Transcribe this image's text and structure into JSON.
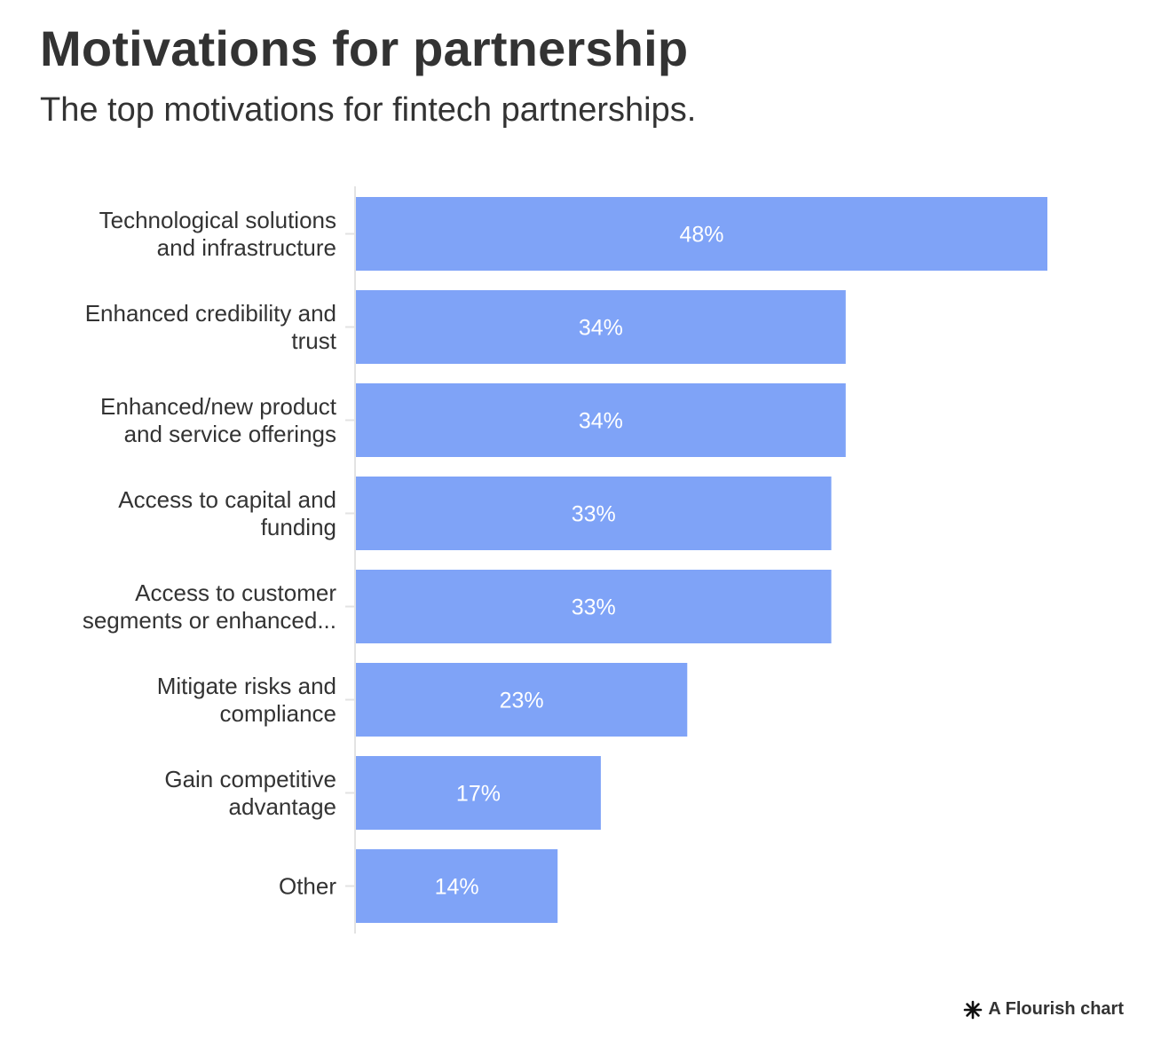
{
  "chart_data": {
    "type": "bar",
    "orientation": "horizontal",
    "title": "Motivations for partnership",
    "subtitle": "The top motivations for fintech partnerships.",
    "categories": [
      [
        "Technological solutions",
        "and infrastructure"
      ],
      [
        "Enhanced credibility and",
        "trust"
      ],
      [
        "Enhanced/new product",
        "and service offerings"
      ],
      [
        "Access to capital and",
        "funding"
      ],
      [
        "Access to customer",
        "segments or enhanced..."
      ],
      [
        "Mitigate risks and",
        "compliance"
      ],
      [
        "Gain competitive",
        "advantage"
      ],
      [
        "Other"
      ]
    ],
    "values": [
      48,
      34,
      34,
      33,
      33,
      23,
      17,
      14
    ],
    "value_labels": [
      "48%",
      "34%",
      "34%",
      "33%",
      "33%",
      "23%",
      "17%",
      "14%"
    ],
    "xlim": [
      0,
      48
    ],
    "bar_color": "#7fa3f7",
    "grid": false,
    "legend": "none"
  },
  "footer": {
    "text": "A Flourish chart",
    "icon": "flourish-asterisk-icon"
  }
}
